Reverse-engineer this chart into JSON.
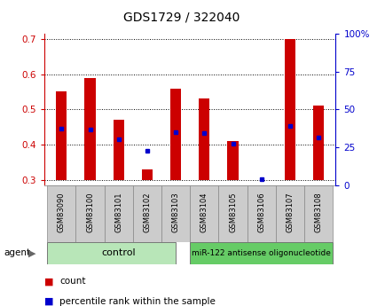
{
  "title": "GDS1729 / 322040",
  "samples": [
    "GSM83090",
    "GSM83100",
    "GSM83101",
    "GSM83102",
    "GSM83103",
    "GSM83104",
    "GSM83105",
    "GSM83106",
    "GSM83107",
    "GSM83108"
  ],
  "bar_tops": [
    0.55,
    0.59,
    0.47,
    0.33,
    0.56,
    0.53,
    0.41,
    0.3,
    0.7,
    0.51
  ],
  "bar_bottom": 0.3,
  "blue_dots": [
    0.445,
    0.444,
    0.415,
    0.383,
    0.436,
    0.434,
    0.403,
    0.303,
    0.453,
    0.42
  ],
  "ylim_left": [
    0.285,
    0.715
  ],
  "ylim_right": [
    0,
    100
  ],
  "yticks_left": [
    0.3,
    0.4,
    0.5,
    0.6,
    0.7
  ],
  "ytick_labels_left": [
    "0.3",
    "0.4",
    "0.5",
    "0.6",
    "0.7"
  ],
  "yticks_right": [
    0,
    25,
    50,
    75,
    100
  ],
  "ytick_labels_right": [
    "0",
    "25",
    "50",
    "75",
    "100%"
  ],
  "bar_color": "#cc0000",
  "dot_color": "#0000cc",
  "bar_width": 0.38,
  "control_label": "control",
  "treatment_label": "miR-122 antisense oligonucleotide",
  "control_color": "#b8e6b8",
  "treatment_color": "#66cc66",
  "agent_label": "agent",
  "legend_count": "count",
  "legend_pct": "percentile rank within the sample",
  "control_samples": 5,
  "treatment_samples": 5,
  "left_axis_color": "#cc0000",
  "right_axis_color": "#0000cc",
  "sample_box_color": "#cccccc",
  "title_color": "#000000"
}
